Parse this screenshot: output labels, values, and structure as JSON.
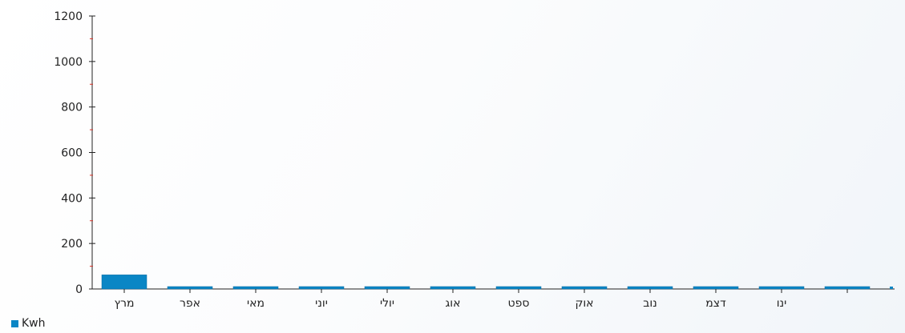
{
  "chart_data": {
    "type": "bar",
    "categories": [
      "מרץ",
      "אפר",
      "מאי",
      "יוני",
      "יולי",
      "אוג",
      "ספט",
      "אוק",
      "נוב",
      "דצמ",
      "ינו",
      ""
    ],
    "series": [
      {
        "name": "Kwh",
        "values": [
          62,
          5,
          5,
          5,
          5,
          5,
          5,
          5,
          5,
          5,
          5,
          5
        ]
      }
    ],
    "ylim": [
      0,
      1200
    ],
    "yticks": [
      0,
      200,
      400,
      600,
      800,
      1000,
      1200
    ],
    "grid": false,
    "legend": "bottom-left",
    "colors": {
      "bar": "#0a86c5",
      "bar_edge": "#0569a0",
      "minor_tick": "#d93025",
      "axis": "#222222"
    }
  }
}
